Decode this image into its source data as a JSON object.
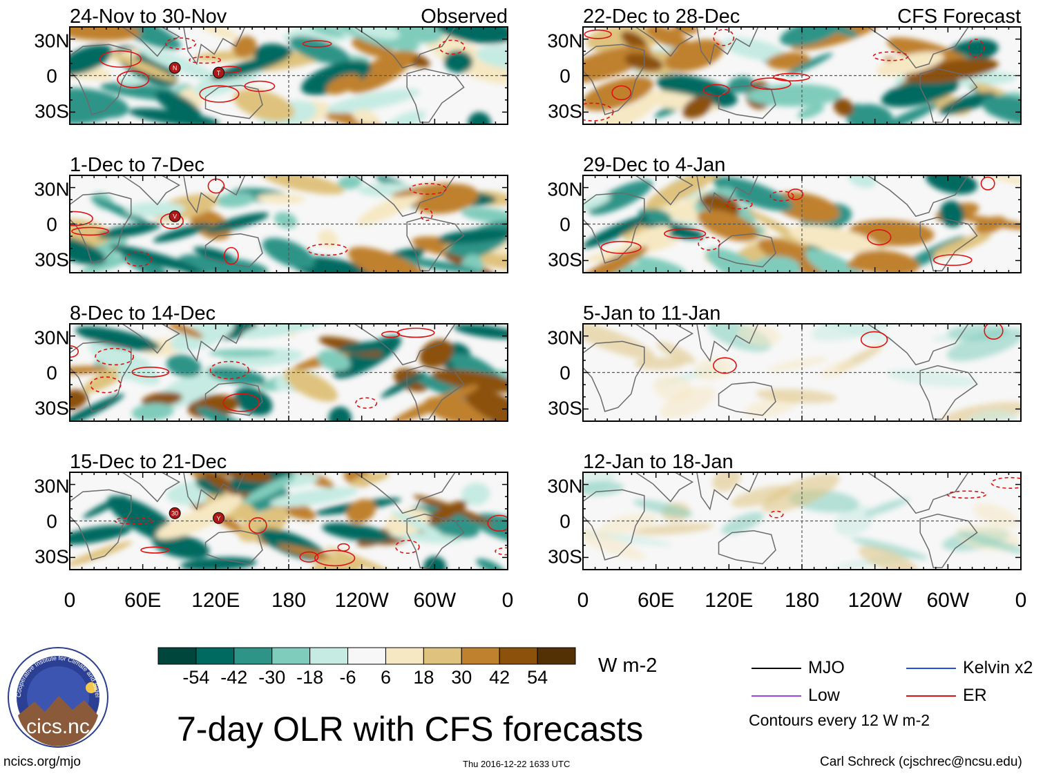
{
  "panels": [
    {
      "title": "24-Nov to 30-Nov",
      "tag": "Observed",
      "storms": [
        "N",
        "T"
      ]
    },
    {
      "title": "1-Dec to 7-Dec",
      "tag": "",
      "storms": [
        "V"
      ]
    },
    {
      "title": "8-Dec to 14-Dec",
      "tag": "",
      "storms": []
    },
    {
      "title": "15-Dec to 21-Dec",
      "tag": "",
      "storms": [
        "30",
        "Y"
      ]
    },
    {
      "title": "22-Dec to 28-Dec",
      "tag": "CFS Forecast",
      "storms": []
    },
    {
      "title": "29-Dec to 4-Jan",
      "tag": "",
      "storms": []
    },
    {
      "title": "5-Jan to 11-Jan",
      "tag": "",
      "storms": []
    },
    {
      "title": "12-Jan to 18-Jan",
      "tag": "",
      "storms": []
    }
  ],
  "lat_labels": [
    "30N",
    "0",
    "30S"
  ],
  "lon_labels": [
    "0",
    "60E",
    "120E",
    "180",
    "120W",
    "60W",
    "0"
  ],
  "colorbar": {
    "labels": [
      "-54",
      "-42",
      "-30",
      "-18",
      "-6",
      "6",
      "18",
      "30",
      "42",
      "54"
    ],
    "colors": [
      "#00463c",
      "#006a61",
      "#2f9488",
      "#80ccbc",
      "#c6ebe2",
      "#f7f7f7",
      "#f6e8c3",
      "#dfc27d",
      "#bf812d",
      "#8c510a",
      "#543005"
    ],
    "unit": "W m-2"
  },
  "legend": {
    "items": [
      {
        "label": "MJO",
        "color": "#000000"
      },
      {
        "label": "Kelvin x2",
        "color": "#2050e0"
      },
      {
        "label": "Low",
        "color": "#a040e0"
      },
      {
        "label": "ER",
        "color": "#e01010"
      }
    ],
    "contour_note": "Contours every 12 W m-2"
  },
  "title": "7-day OLR with CFS forecasts",
  "logo_text": "cics.nc",
  "logo_ring_text": "Cooperative Institute for Climate and Satellites",
  "credits": {
    "left": "ncics.org/mjo",
    "center": "Thu 2016-12-22 1633 UTC",
    "right": "Carl Schreck (cjschrec@ncsu.edu)"
  }
}
